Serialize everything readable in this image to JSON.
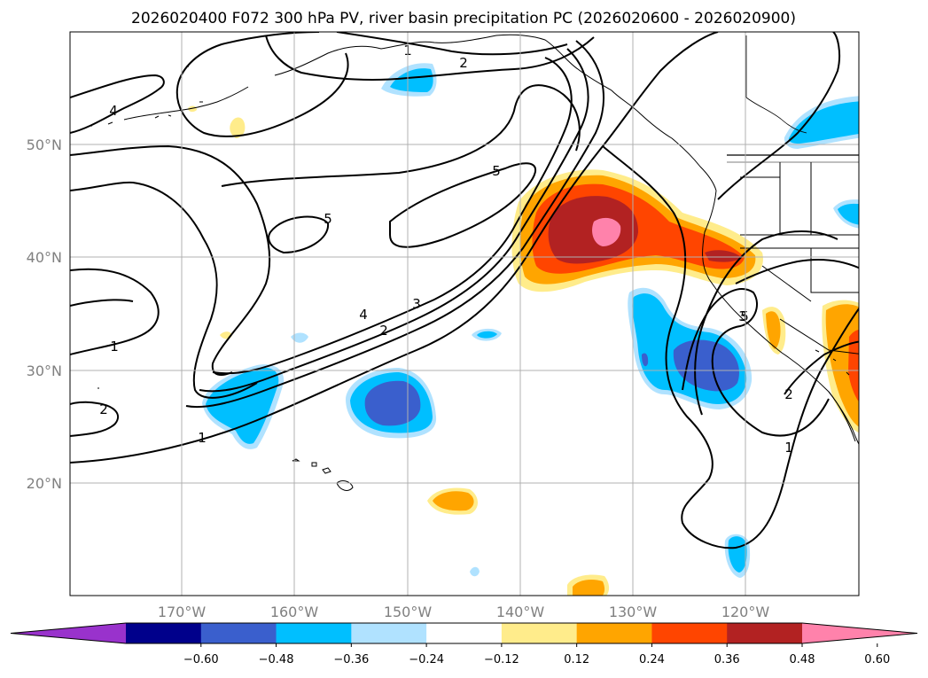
{
  "title": "2026020400 F072 300 hPa PV, river basin precipitation PC (2026020600 - 2026020900)",
  "lat_labels": [
    "50°N",
    "40°N",
    "30°N",
    "20°N"
  ],
  "lon_labels": [
    "170°W",
    "160°W",
    "150°W",
    "140°W",
    "130°W",
    "120°W"
  ],
  "colorbar": {
    "ticks": [
      "−0.60",
      "−0.48",
      "−0.36",
      "−0.24",
      "−0.12",
      "0.12",
      "0.24",
      "0.36",
      "0.48",
      "0.60"
    ],
    "colors": [
      "#9932cc",
      "#00008b",
      "#3a5fcd",
      "#00bfff",
      "#b0e2ff",
      "#ffffff",
      "#ffec8b",
      "#ffa500",
      "#ff4500",
      "#b22222",
      "#ff82ab"
    ]
  },
  "pv_contour_labels": [
    "1",
    "2",
    "4",
    "5",
    "1",
    "2",
    "5",
    "5",
    "4",
    "3",
    "2",
    "1",
    "1",
    "2",
    "3",
    "2",
    "1"
  ]
}
